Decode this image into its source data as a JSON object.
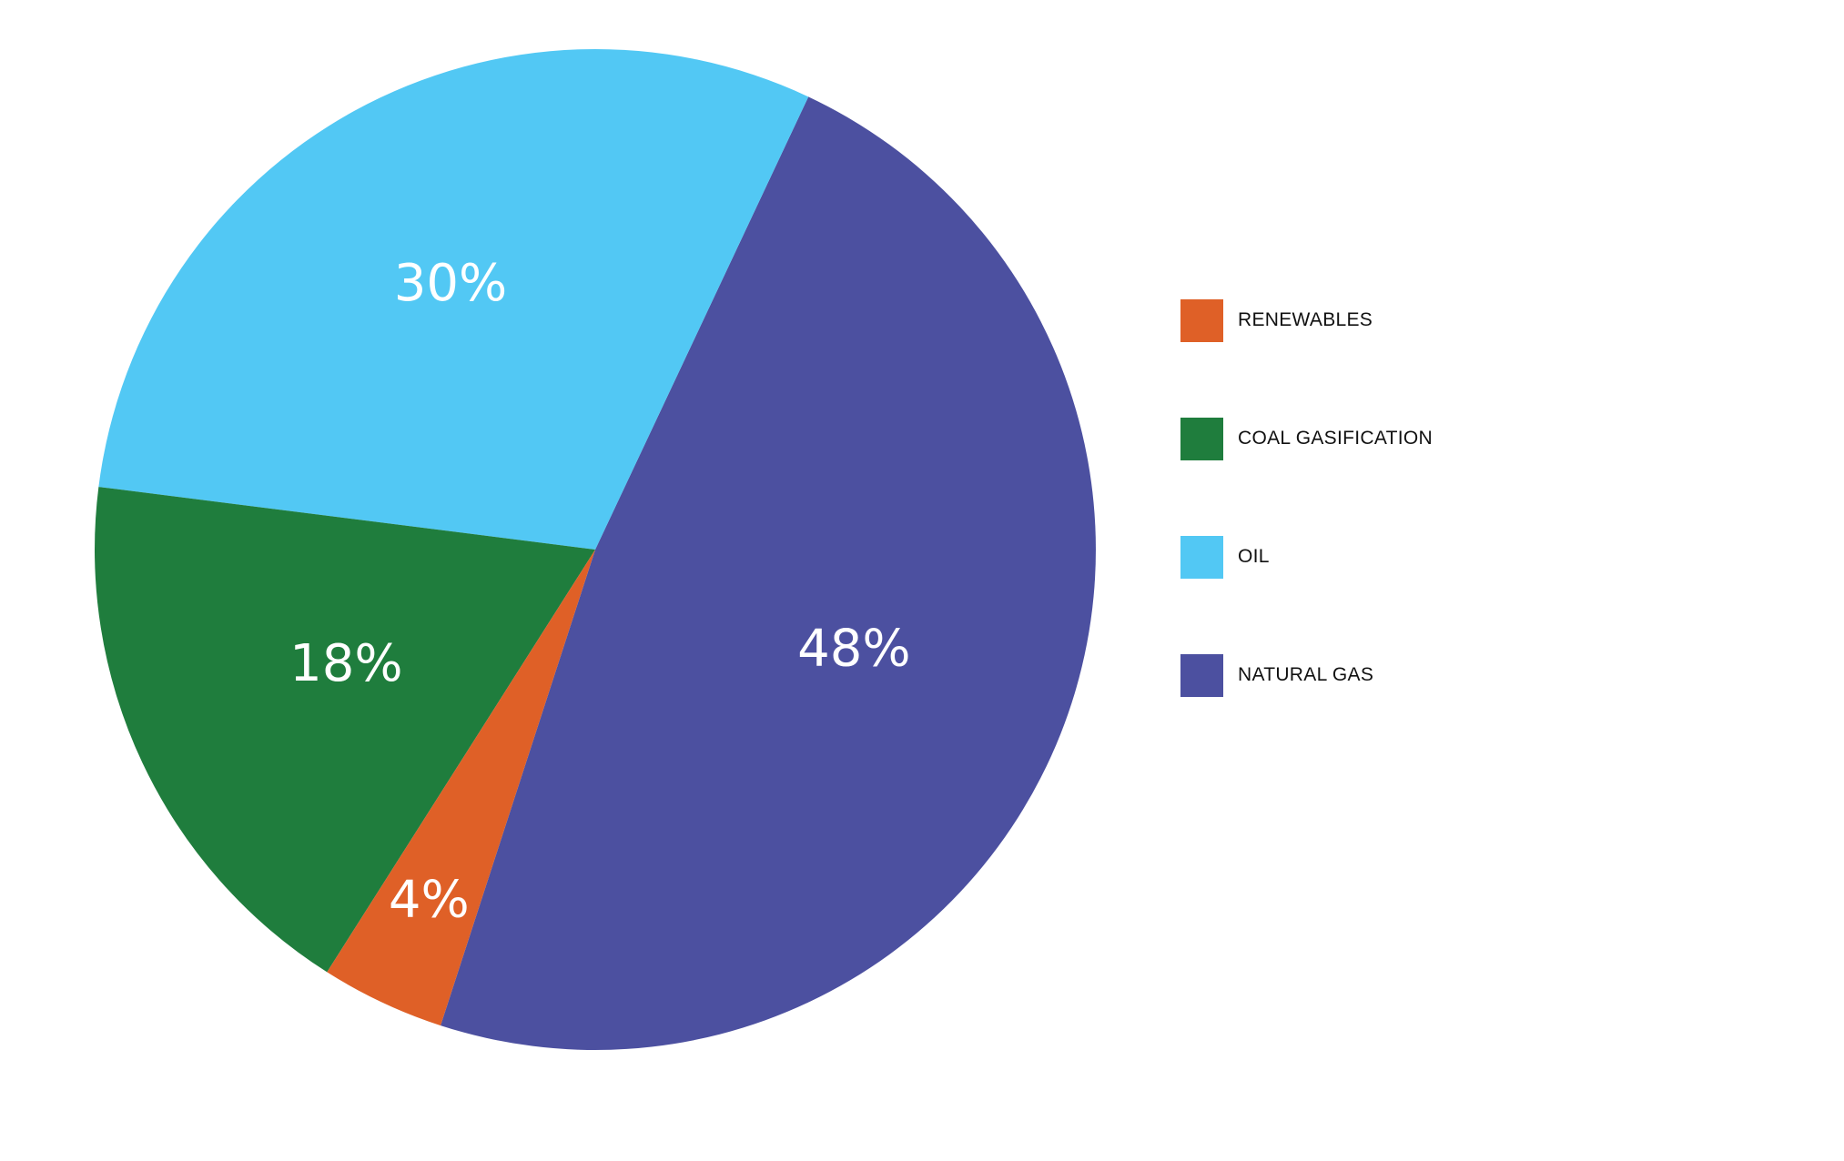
{
  "chart_data": {
    "type": "pie",
    "title": "",
    "slices": [
      {
        "name": "NATURAL GAS",
        "value": 48,
        "label": "48%",
        "color": "#4C50A0"
      },
      {
        "name": "OIL",
        "value": 30,
        "label": "30%",
        "color": "#52C8F4"
      },
      {
        "name": "COAL GASIFICATION",
        "value": 18,
        "label": "18%",
        "color": "#1F7D3D"
      },
      {
        "name": "RENEWABLES",
        "value": 4,
        "label": "4%",
        "color": "#DF6027"
      }
    ],
    "legend": {
      "placement": "right",
      "items": [
        {
          "label": "RENEWABLES",
          "color": "#DF6027"
        },
        {
          "label": "COAL GASIFICATION",
          "color": "#1F7D3D"
        },
        {
          "label": "OIL",
          "color": "#52C8F4"
        },
        {
          "label": "NATURAL GAS",
          "color": "#4C50A0"
        }
      ]
    }
  }
}
